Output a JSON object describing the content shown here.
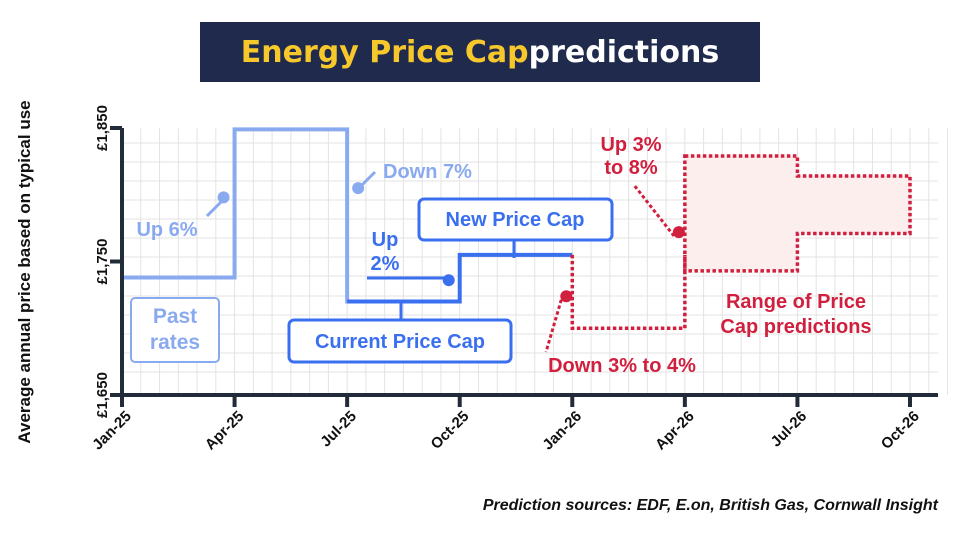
{
  "title": {
    "highlight": "Energy Price Cap",
    "rest": " predictions"
  },
  "colors": {
    "past": "#8aaaf0",
    "current": "#3a6ff0",
    "prediction": "#d11f3e",
    "range_fill": "#fdeeee",
    "axis": "#222b3a",
    "grid": "#e3e3e3"
  },
  "footnote": "Prediction sources: EDF, E.on, British Gas, Cornwall Insight",
  "chart_data": {
    "type": "line",
    "ylabel": "Average annual price based on typical use",
    "x_ticks": [
      "Jan-25",
      "Apr-25",
      "Jul-25",
      "Oct-25",
      "Jan-26",
      "Apr-26",
      "Jul-26",
      "Oct-26"
    ],
    "y_ticks": [
      "£1,650",
      "£1,750",
      "£1,850"
    ],
    "ylim": [
      1650,
      1850
    ],
    "grid": true,
    "series": [
      {
        "id": "past",
        "style": "solid",
        "color": "#8aaaf0",
        "points": [
          [
            "Jan-25",
            1738
          ],
          [
            "Apr-25",
            1738
          ],
          [
            "Apr-25",
            1849
          ],
          [
            "Jul-25",
            1849
          ],
          [
            "Jul-25",
            1720
          ],
          [
            "Oct-25",
            1720
          ]
        ]
      },
      {
        "id": "current",
        "style": "solid",
        "color": "#3a6ff0",
        "points": [
          [
            "Jul-25",
            1720
          ],
          [
            "Oct-25",
            1720
          ],
          [
            "Oct-25",
            1755
          ],
          [
            "Jan-26",
            1755
          ]
        ]
      },
      {
        "id": "prediction_low",
        "style": "dotted",
        "color": "#d11f3e",
        "points": [
          [
            "Jan-26",
            1755
          ],
          [
            "Jan-26",
            1700
          ],
          [
            "Apr-26",
            1700
          ],
          [
            "Apr-26",
            1755
          ]
        ]
      }
    ],
    "range": {
      "color": "#d11f3e",
      "upper": [
        [
          "Apr-26",
          1829
        ],
        [
          "Jul-26",
          1829
        ],
        [
          "Jul-26",
          1814
        ],
        [
          "Oct-26",
          1814
        ]
      ],
      "lower": [
        [
          "Apr-26",
          1743
        ],
        [
          "Jul-26",
          1743
        ],
        [
          "Jul-26",
          1771
        ],
        [
          "Oct-26",
          1771
        ]
      ]
    },
    "annotations": [
      {
        "id": "up6",
        "lines": [
          "Up 6%"
        ],
        "color": "#8aaaf0",
        "dot": [
          "Apr-25",
          1798
        ]
      },
      {
        "id": "down7",
        "lines": [
          "Down 7%"
        ],
        "color": "#8aaaf0",
        "dot": [
          "Jul-25",
          1805
        ]
      },
      {
        "id": "up2",
        "lines": [
          "Up",
          "2%"
        ],
        "color": "#3a6ff0",
        "dot": [
          "Oct-25",
          1736
        ]
      },
      {
        "id": "down3to4",
        "lines": [
          "Down 3% to 4%"
        ],
        "color": "#d11f3e",
        "dot": [
          "Jan-26",
          1724
        ]
      },
      {
        "id": "up3to8",
        "lines": [
          "Up 3%",
          "to 8%"
        ],
        "color": "#d11f3e",
        "dot": [
          "Apr-26",
          1772
        ]
      },
      {
        "id": "range_label",
        "lines": [
          "Range of Price",
          "Cap predictions"
        ],
        "color": "#d11f3e"
      }
    ],
    "boxes": [
      {
        "id": "past_rates",
        "lines": [
          "Past",
          "rates"
        ],
        "color": "#8aaaf0"
      },
      {
        "id": "current_price_cap",
        "lines": [
          "Current Price Cap"
        ],
        "color": "#3a6ff0"
      },
      {
        "id": "new_price_cap",
        "lines": [
          "New Price Cap"
        ],
        "color": "#3a6ff0"
      }
    ]
  }
}
